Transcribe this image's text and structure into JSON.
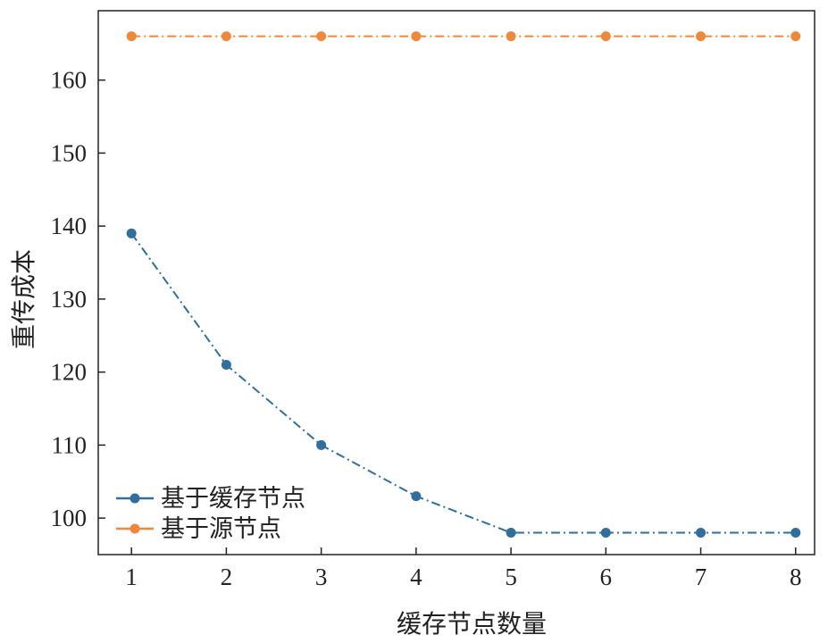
{
  "chart_data": {
    "type": "line",
    "xlabel": "缓存节点数量",
    "ylabel": "重传成本",
    "x": [
      1,
      2,
      3,
      4,
      5,
      6,
      7,
      8
    ],
    "xticks": [
      "1",
      "2",
      "3",
      "4",
      "5",
      "6",
      "7",
      "8"
    ],
    "yticks": [
      100,
      110,
      120,
      130,
      140,
      150,
      160
    ],
    "xlim": [
      0.65,
      8.2
    ],
    "ylim": [
      95,
      169.5
    ],
    "grid": false,
    "legend_position": "lower-left",
    "series": [
      {
        "name": "基于缓存节点",
        "values": [
          139,
          121,
          110,
          103,
          98,
          98,
          98,
          98
        ],
        "color": "#2e6f9f",
        "line_style": "dash-dot",
        "marker": "circle"
      },
      {
        "name": "基于源节点",
        "values": [
          166,
          166,
          166,
          166,
          166,
          166,
          166,
          166
        ],
        "color": "#f0883a",
        "line_style": "dash-dot",
        "marker": "circle"
      }
    ]
  }
}
